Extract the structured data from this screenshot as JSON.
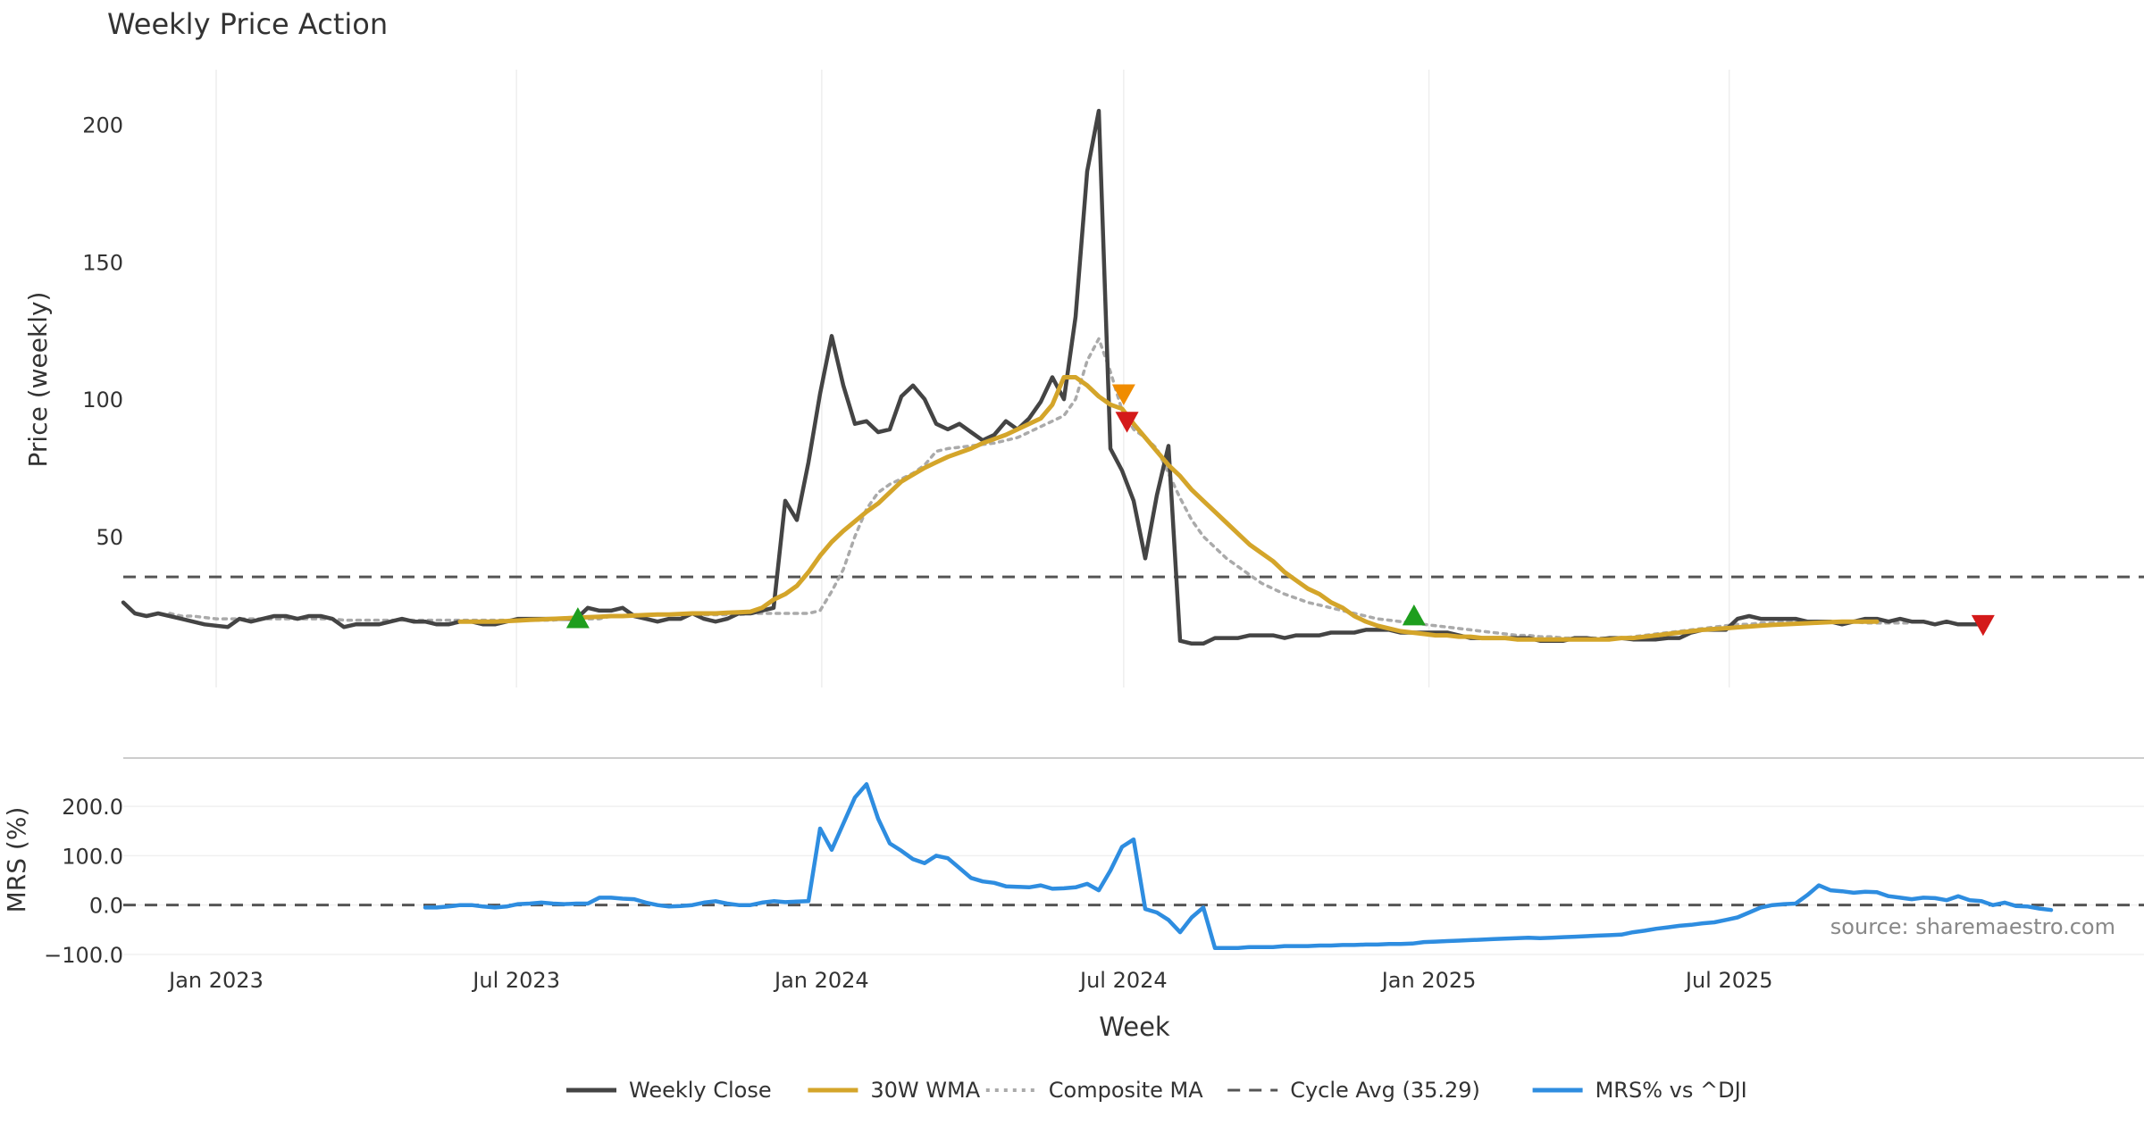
{
  "chart_data": {
    "type": "line",
    "title": "Weekly Price Action",
    "xlabel": "Week",
    "x_ticks": [
      "Jan 2023",
      "Jul 2023",
      "Jan 2024",
      "Jul 2024",
      "Jan 2025",
      "Jul 2025"
    ],
    "x_tick_dates": [
      "2023-01-01",
      "2023-07-01",
      "2024-01-01",
      "2024-07-01",
      "2025-01-01",
      "2025-07-01"
    ],
    "xlim": [
      "2022-11-06",
      "2026-03-08"
    ],
    "grid": true,
    "legend_position": "bottom",
    "source_note": "source: sharemaestro.com",
    "colors": {
      "weekly_close": "#444444",
      "wma": "#d4a52a",
      "composite": "#aaaaaa",
      "cycle": "#555555",
      "mrs": "#2e8de0",
      "buy_marker": "#1e9e1e",
      "sell_marker": "#d41a1a",
      "warn_marker": "#f08c00"
    },
    "price_panel": {
      "ylabel": "Price (weekly)",
      "ylim": [
        -5,
        220
      ],
      "yticks": [
        50,
        100,
        150,
        200
      ],
      "cycle_avg": 35.29,
      "markers": [
        {
          "date": "2023-08-07",
          "value": 20,
          "type": "buy"
        },
        {
          "date": "2024-07-01",
          "value": 102,
          "type": "warn"
        },
        {
          "date": "2024-07-03",
          "value": 92,
          "type": "sell"
        },
        {
          "date": "2024-12-23",
          "value": 21,
          "type": "buy"
        },
        {
          "date": "2025-12-01",
          "value": 18,
          "type": "sell"
        }
      ]
    },
    "mrs_panel": {
      "ylabel": "MRS (%)",
      "ylim": [
        -120,
        260
      ],
      "yticks": [
        200,
        100,
        0,
        -100
      ],
      "ytick_labels": [
        "200.0",
        "100.0",
        "0.0",
        "−100.0"
      ],
      "zero_line": 0
    },
    "series": [
      {
        "name": "Weekly Close",
        "start": "2022-11-06",
        "values": [
          26,
          22,
          21,
          22,
          21,
          20,
          19,
          18,
          17.5,
          17,
          20,
          19,
          20,
          21,
          21,
          20,
          21,
          21,
          20,
          17,
          18,
          18,
          18,
          19,
          20,
          19,
          19,
          18,
          18,
          19,
          19,
          18,
          18,
          19,
          20,
          20,
          20,
          20,
          20,
          20,
          24,
          23,
          23,
          24,
          21,
          20,
          19,
          20,
          20,
          22,
          20,
          19,
          20,
          22,
          22,
          23,
          24,
          63,
          56,
          77,
          102,
          123,
          105,
          91,
          92,
          88,
          89,
          101,
          105,
          100,
          91,
          89,
          91,
          88,
          85,
          87,
          92,
          89,
          93,
          99,
          108,
          100,
          130,
          183,
          205,
          82,
          74,
          63,
          42,
          65,
          83,
          12,
          11,
          11,
          13,
          13,
          13,
          14,
          14,
          14,
          13,
          14,
          14,
          14,
          15,
          15,
          15,
          16,
          16,
          16,
          15,
          15,
          15,
          15,
          15,
          14,
          13,
          13,
          13,
          13,
          13,
          13,
          12,
          12,
          12,
          13,
          13,
          12.5,
          13,
          13,
          12.5,
          12.5,
          12.5,
          13,
          13,
          15,
          16,
          16,
          16,
          20,
          21,
          20,
          20,
          20,
          20,
          19,
          19,
          19,
          18,
          19,
          20,
          20,
          19,
          20,
          19,
          19,
          18,
          19,
          18,
          18,
          18
        ]
      },
      {
        "name": "30W WMA",
        "start": "2023-05-28",
        "values": [
          19,
          19,
          19,
          19,
          19.2,
          19.4,
          19.6,
          19.8,
          20,
          20.2,
          20.4,
          20.6,
          20.8,
          21,
          21,
          21.2,
          21.4,
          21.6,
          21.6,
          21.8,
          22,
          22,
          22,
          22.2,
          22.4,
          22.6,
          24,
          27,
          29,
          32,
          37,
          43,
          48,
          52,
          55.5,
          59,
          62,
          66,
          70,
          72.5,
          75,
          77,
          79,
          80.5,
          82,
          84,
          85.5,
          87,
          89,
          91,
          93,
          98,
          108,
          108,
          105,
          101,
          98,
          96.5,
          91,
          86,
          81,
          76,
          72,
          67,
          63,
          59,
          55,
          51,
          47,
          44,
          41,
          37,
          34,
          31,
          29,
          26,
          24,
          21,
          19,
          17.5,
          16.5,
          15.5,
          15,
          14.5,
          14,
          14,
          13.5,
          13.5,
          13,
          13,
          13,
          12.5,
          12.5,
          12.5,
          12.5,
          12.5,
          12.5,
          12.5,
          12.5,
          12.5,
          13,
          13,
          13.5,
          14,
          14.5,
          15,
          15.5,
          16,
          16.3,
          16.6,
          16.9,
          17.2,
          17.5,
          17.8,
          18,
          18.2,
          18.4,
          18.6,
          18.8,
          19,
          19,
          19,
          19
        ]
      },
      {
        "name": "Composite MA",
        "start": "2022-12-04",
        "values": [
          22,
          21,
          21,
          20.5,
          20,
          20,
          20,
          20,
          20,
          20,
          20,
          20,
          20,
          20,
          20,
          19.5,
          19.5,
          19.5,
          19.5,
          19.5,
          19.5,
          19.5,
          19.5,
          19.5,
          19.5,
          19.5,
          19.5,
          19.5,
          19.5,
          19.5,
          19.5,
          19.5,
          19.5,
          19.5,
          20,
          20,
          20,
          20,
          21,
          21,
          21.5,
          21.5,
          21.5,
          21.5,
          21.5,
          21.5,
          21.5,
          21.5,
          21.5,
          21.5,
          22,
          22,
          22,
          22,
          22,
          22,
          23,
          30,
          38,
          50,
          60,
          66,
          69,
          71,
          73,
          76,
          81,
          82,
          82.5,
          83,
          83.5,
          84,
          85,
          86,
          88,
          90,
          92,
          94,
          100,
          114,
          122,
          110,
          96,
          89,
          86,
          82,
          73,
          64,
          56,
          50,
          46,
          42,
          39,
          36,
          33,
          31,
          29,
          27.5,
          26,
          25,
          24,
          23,
          22,
          21,
          20,
          19.5,
          19,
          18.5,
          18,
          17.5,
          17,
          16.5,
          16,
          15.5,
          15,
          14.5,
          14,
          14,
          13.5,
          13.5,
          13,
          13,
          13,
          13,
          13,
          13,
          13.5,
          14,
          14.5,
          15,
          15.5,
          16,
          16.5,
          17,
          17.5,
          18,
          18,
          18.5,
          18.5,
          19,
          19,
          19,
          19,
          19,
          19,
          19,
          18.5,
          18.5,
          18.5,
          18.5,
          18.5
        ]
      },
      {
        "name": "Cycle Avg (35.29)",
        "constant": 35.29
      },
      {
        "name": "MRS% vs ^DJI",
        "start": "2023-05-07",
        "values": [
          -5,
          -5,
          -3,
          0,
          0,
          -3,
          -5,
          -3,
          2,
          3,
          5,
          3,
          2,
          3,
          3,
          15,
          15,
          13,
          12,
          5,
          0,
          -3,
          -2,
          0,
          5,
          8,
          3,
          0,
          0,
          5,
          8,
          6,
          7,
          8,
          155,
          112,
          165,
          218,
          245,
          175,
          125,
          110,
          93,
          85,
          100,
          95,
          75,
          55,
          48,
          45,
          38,
          37,
          36,
          40,
          33,
          34,
          36,
          43,
          30,
          70,
          118,
          133,
          -8,
          -15,
          -30,
          -55,
          -25,
          -5,
          -87,
          -87,
          -87,
          -85,
          -85,
          -85,
          -83,
          -83,
          -83,
          -82,
          -82,
          -81,
          -81,
          -80,
          -80,
          -79,
          -79,
          -78,
          -75,
          -74,
          -73,
          -72,
          -71,
          -70,
          -69,
          -68,
          -67,
          -66,
          -67,
          -66,
          -65,
          -64,
          -63,
          -62,
          -61,
          -60,
          -55,
          -52,
          -48,
          -45,
          -42,
          -40,
          -37,
          -35,
          -30,
          -25,
          -15,
          -5,
          0,
          2,
          3,
          20,
          40,
          30,
          28,
          25,
          27,
          26,
          18,
          15,
          12,
          15,
          14,
          10,
          18,
          10,
          8,
          0,
          5,
          -2,
          -3,
          -7,
          -10
        ]
      }
    ]
  }
}
